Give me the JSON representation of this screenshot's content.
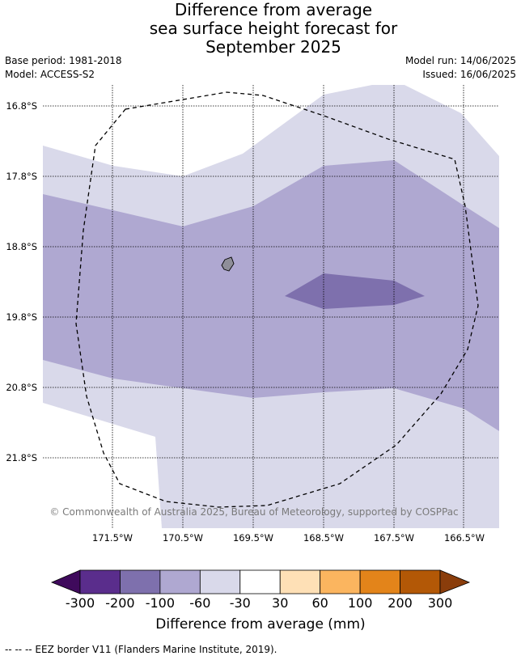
{
  "title": {
    "line1": "Difference from average",
    "line2": "sea surface height forecast for",
    "line3": "September 2025"
  },
  "info": {
    "base_period": "Base period: 1981-2018",
    "model": "Model: ACCESS-S2",
    "model_run": "Model run: 14/06/2025",
    "issued": "Issued: 16/06/2025"
  },
  "map": {
    "lat_labels": [
      "16.8°S",
      "17.8°S",
      "18.8°S",
      "19.8°S",
      "20.8°S",
      "21.8°S"
    ],
    "lon_labels": [
      "171.5°W",
      "170.5°W",
      "169.5°W",
      "168.5°W",
      "167.5°W",
      "166.5°W"
    ],
    "copyright": "© Commonwealth of Australia 2025, Bureau of Meteorology, supported by COSPPac",
    "eez_line_style": "dashed"
  },
  "colorbar": {
    "title": "Difference from average (mm)",
    "tick_labels": [
      "-300",
      "-200",
      "-100",
      "-60",
      "-30",
      "30",
      "60",
      "100",
      "200",
      "300"
    ],
    "extend_low_color": "#3f0a5c",
    "extend_high_color": "#8a3d0b",
    "colors": [
      "#5a2d8c",
      "#7e70ad",
      "#afa8d1",
      "#d9d9ea",
      "#ffffff",
      "#fee0b6",
      "#fbb55f",
      "#e3841a",
      "#b35806"
    ]
  },
  "footer": "--  --  -- EEZ border V11 (Flanders Marine Institute, 2019)."
}
